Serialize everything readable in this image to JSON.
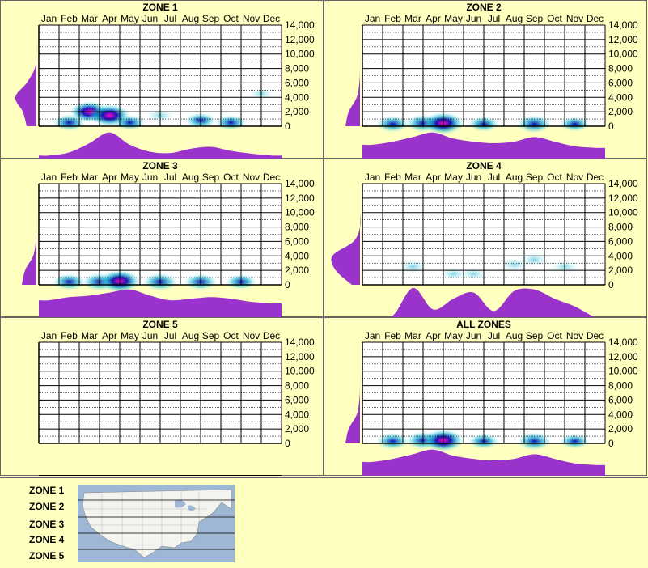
{
  "months": [
    "Jan",
    "Feb",
    "Mar",
    "Apr",
    "May",
    "Jun",
    "Jul",
    "Aug",
    "Sep",
    "Oct",
    "Nov",
    "Dec"
  ],
  "y_ticks": [
    "14,000",
    "12,000",
    "10,000",
    "8,000",
    "6,000",
    "4,000",
    "2,000",
    "0"
  ],
  "colors": {
    "background": "#ffffc0",
    "profile": "#9933cc",
    "low": "#ccffff",
    "mid": "#00aacc",
    "high": "#0000aa",
    "peak": "#ff00cc"
  },
  "chart_data": [
    {
      "type": "heatmap",
      "title": "ZONE 1",
      "x": [
        "Jan",
        "Feb",
        "Mar",
        "Apr",
        "May",
        "Jun",
        "Jul",
        "Aug",
        "Sep",
        "Oct",
        "Nov",
        "Dec"
      ],
      "ylim": [
        0,
        14000
      ],
      "yticks": [
        0,
        2000,
        4000,
        6000,
        8000,
        10000,
        12000,
        14000
      ],
      "monthly_profile": [
        0.1,
        0.2,
        0.5,
        0.85,
        0.45,
        0.22,
        0.18,
        0.32,
        0.38,
        0.25,
        0.16,
        0.1
      ],
      "elevation_profile": [
        0.3,
        0.42,
        0.65,
        0.3,
        0.05,
        0.0,
        0.0,
        0.0
      ],
      "density": [
        {
          "month": 2.0,
          "elev": 500,
          "level": 0.6
        },
        {
          "month": 3.0,
          "elev": 2000,
          "level": 0.9
        },
        {
          "month": 4.0,
          "elev": 1500,
          "level": 1.0
        },
        {
          "month": 5.0,
          "elev": 500,
          "level": 0.5
        },
        {
          "month": 6.5,
          "elev": 1500,
          "level": 0.3
        },
        {
          "month": 8.5,
          "elev": 800,
          "level": 0.5
        },
        {
          "month": 10.0,
          "elev": 500,
          "level": 0.5
        },
        {
          "month": 11.5,
          "elev": 4500,
          "level": 0.15
        }
      ]
    },
    {
      "type": "heatmap",
      "title": "ZONE 2",
      "x": [
        "Jan",
        "Feb",
        "Mar",
        "Apr",
        "May",
        "Jun",
        "Jul",
        "Aug",
        "Sep",
        "Oct",
        "Nov",
        "Dec"
      ],
      "ylim": [
        0,
        14000
      ],
      "yticks": [
        0,
        2000,
        4000,
        6000,
        8000,
        10000,
        12000,
        14000
      ],
      "monthly_profile": [
        0.45,
        0.55,
        0.7,
        0.85,
        0.65,
        0.55,
        0.5,
        0.55,
        0.7,
        0.55,
        0.4,
        0.35
      ],
      "elevation_profile": [
        0.45,
        0.35,
        0.1,
        0.02,
        0.0,
        0.0,
        0.0,
        0.0
      ],
      "density": [
        {
          "month": 2.0,
          "elev": 300,
          "level": 0.6
        },
        {
          "month": 3.5,
          "elev": 400,
          "level": 0.7
        },
        {
          "month": 4.5,
          "elev": 400,
          "level": 1.0
        },
        {
          "month": 6.5,
          "elev": 300,
          "level": 0.5
        },
        {
          "month": 9.0,
          "elev": 300,
          "level": 0.7
        },
        {
          "month": 11.0,
          "elev": 300,
          "level": 0.45
        }
      ]
    },
    {
      "type": "heatmap",
      "title": "ZONE 3",
      "x": [
        "Jan",
        "Feb",
        "Mar",
        "Apr",
        "May",
        "Jun",
        "Jul",
        "Aug",
        "Sep",
        "Oct",
        "Nov",
        "Dec"
      ],
      "ylim": [
        0,
        14000
      ],
      "yticks": [
        0,
        2000,
        4000,
        6000,
        8000,
        10000,
        12000,
        14000
      ],
      "monthly_profile": [
        0.55,
        0.65,
        0.7,
        0.8,
        0.9,
        0.7,
        0.55,
        0.6,
        0.65,
        0.6,
        0.5,
        0.45
      ],
      "elevation_profile": [
        0.45,
        0.35,
        0.1,
        0.02,
        0.0,
        0.0,
        0.0,
        0.0
      ],
      "density": [
        {
          "month": 2.0,
          "elev": 400,
          "level": 0.6
        },
        {
          "month": 3.5,
          "elev": 400,
          "level": 0.7
        },
        {
          "month": 4.5,
          "elev": 500,
          "level": 1.0
        },
        {
          "month": 6.5,
          "elev": 400,
          "level": 0.7
        },
        {
          "month": 8.5,
          "elev": 400,
          "level": 0.6
        },
        {
          "month": 10.5,
          "elev": 400,
          "level": 0.5
        }
      ]
    },
    {
      "type": "heatmap",
      "title": "ZONE 4",
      "x": [
        "Jan",
        "Feb",
        "Mar",
        "Apr",
        "May",
        "Jun",
        "Jul",
        "Aug",
        "Sep",
        "Oct",
        "Nov",
        "Dec"
      ],
      "ylim": [
        0,
        14000
      ],
      "yticks": [
        0,
        2000,
        4000,
        6000,
        8000,
        10000,
        12000,
        14000
      ],
      "monthly_profile": [
        0.0,
        0.05,
        0.95,
        0.25,
        0.6,
        0.8,
        0.2,
        0.85,
        0.9,
        0.6,
        0.35,
        0.0
      ],
      "elevation_profile": [
        0.25,
        0.75,
        0.85,
        0.2,
        0.0,
        0.0,
        0.0,
        0.0
      ],
      "density": [
        {
          "month": 3.0,
          "elev": 2500,
          "level": 0.35
        },
        {
          "month": 5.0,
          "elev": 1500,
          "level": 0.25
        },
        {
          "month": 6.0,
          "elev": 1500,
          "level": 0.25
        },
        {
          "month": 8.0,
          "elev": 2800,
          "level": 0.3
        },
        {
          "month": 9.0,
          "elev": 3500,
          "level": 0.4
        },
        {
          "month": 10.5,
          "elev": 2500,
          "level": 0.25
        }
      ]
    },
    {
      "type": "heatmap",
      "title": "ZONE 5",
      "x": [
        "Jan",
        "Feb",
        "Mar",
        "Apr",
        "May",
        "Jun",
        "Jul",
        "Aug",
        "Sep",
        "Oct",
        "Nov",
        "Dec"
      ],
      "ylim": [
        0,
        14000
      ],
      "yticks": [
        0,
        2000,
        4000,
        6000,
        8000,
        10000,
        12000,
        14000
      ],
      "monthly_profile": [
        0,
        0,
        0,
        0,
        0,
        0,
        0,
        0,
        0,
        0,
        0,
        0
      ],
      "elevation_profile": [
        0,
        0,
        0,
        0,
        0,
        0,
        0,
        0
      ],
      "density": []
    },
    {
      "type": "heatmap",
      "title": "ALL ZONES",
      "x": [
        "Jan",
        "Feb",
        "Mar",
        "Apr",
        "May",
        "Jun",
        "Jul",
        "Aug",
        "Sep",
        "Oct",
        "Nov",
        "Dec"
      ],
      "ylim": [
        0,
        14000
      ],
      "yticks": [
        0,
        2000,
        4000,
        6000,
        8000,
        10000,
        12000,
        14000
      ],
      "monthly_profile": [
        0.45,
        0.55,
        0.7,
        0.85,
        0.65,
        0.55,
        0.5,
        0.55,
        0.7,
        0.55,
        0.4,
        0.35
      ],
      "elevation_profile": [
        0.45,
        0.35,
        0.1,
        0.02,
        0.0,
        0.0,
        0.0,
        0.0
      ],
      "density": [
        {
          "month": 2.0,
          "elev": 300,
          "level": 0.6
        },
        {
          "month": 3.5,
          "elev": 400,
          "level": 0.7
        },
        {
          "month": 4.5,
          "elev": 400,
          "level": 1.0
        },
        {
          "month": 6.5,
          "elev": 300,
          "level": 0.5
        },
        {
          "month": 9.0,
          "elev": 300,
          "level": 0.7
        },
        {
          "month": 11.0,
          "elev": 300,
          "level": 0.45
        }
      ]
    }
  ],
  "legend": {
    "zones": [
      "ZONE 1",
      "ZONE 2",
      "ZONE 3",
      "ZONE 4",
      "ZONE 5"
    ],
    "map_icon": "usa-map"
  }
}
